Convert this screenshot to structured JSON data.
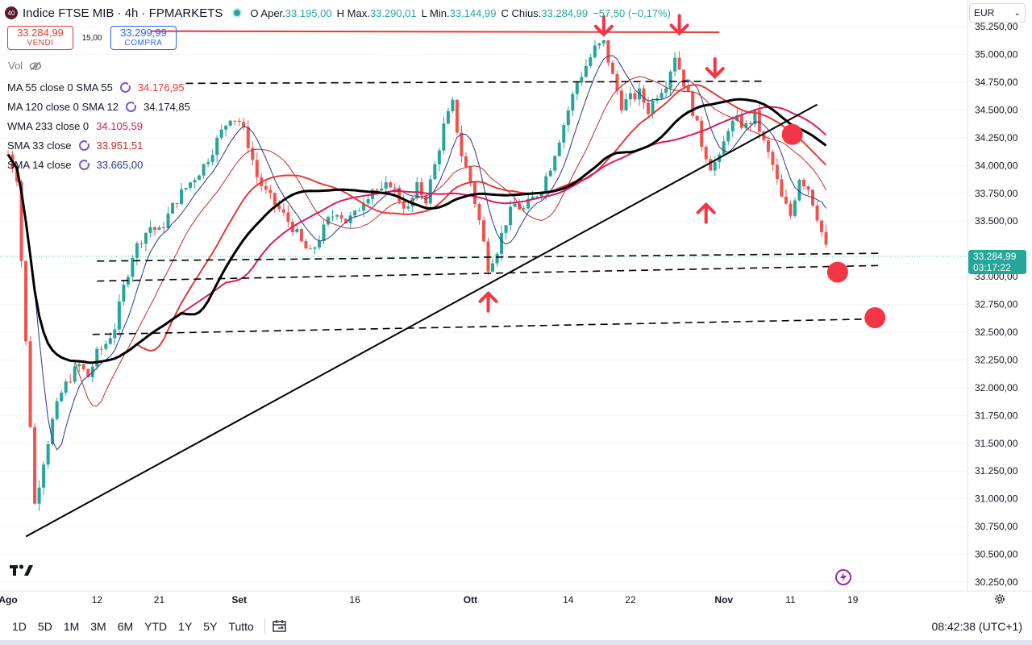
{
  "header": {
    "logo_text": "40",
    "title": "Indice FTSE MIB · 4h · FPMARKETS",
    "open_label": "O",
    "open_text": "Aper.",
    "open_value": "33.195,00",
    "high_label": "H",
    "high_text": "Max.",
    "high_value": "33.290,01",
    "low_label": "L",
    "low_text": "Min.",
    "low_value": "33.144,99",
    "close_label": "C",
    "close_text": "Chius.",
    "close_value": "33.284,99",
    "change": "−57,50 (−0,17%)"
  },
  "trade": {
    "sell_price": "33.284,99",
    "sell_label": "VENDI",
    "spread": "15,00",
    "buy_price": "33.299,99",
    "buy_label": "COMPRA"
  },
  "volume_label": "Vol",
  "indicators": [
    {
      "label": "MA 55 close 0 SMA 55",
      "value": "34.176,95",
      "color": "#e53935"
    },
    {
      "label": "MA 120 close 0 SMA 12",
      "value": "34.174,85",
      "color": "#000000"
    },
    {
      "label": "WMA 233 close 0",
      "value": "34.105,59",
      "color": "#d81b60"
    },
    {
      "label": "SMA 33 close",
      "value": "33.951,51",
      "color": "#c62828"
    },
    {
      "label": "SMA 14 close",
      "value": "33.665,00",
      "color": "#283593"
    }
  ],
  "currency": "EUR",
  "last_price_tag": {
    "price": "33.284,99",
    "countdown": "03:17:22"
  },
  "timeframes": [
    "1D",
    "5D",
    "1M",
    "3M",
    "6M",
    "YTD",
    "1Y",
    "5Y",
    "Tutto"
  ],
  "clock": "08:42:38 (UTC+1)",
  "colors": {
    "up": "#26a69a",
    "down": "#ef5350",
    "annotation": "#f23645"
  },
  "chart_data": {
    "type": "candlestick",
    "title": "Indice FTSE MIB · 4h · FPMARKETS",
    "y_ticks": [
      {
        "v": 35250,
        "label": "35.250,00"
      },
      {
        "v": 35000,
        "label": "35.000,00"
      },
      {
        "v": 34750,
        "label": "34.750,00"
      },
      {
        "v": 34500,
        "label": "34.500,00"
      },
      {
        "v": 34250,
        "label": "34.250,00"
      },
      {
        "v": 34000,
        "label": "34.000,00"
      },
      {
        "v": 33750,
        "label": "33.750,00"
      },
      {
        "v": 33500,
        "label": "33.500,00"
      },
      {
        "v": 33000,
        "label": "33.000,00"
      },
      {
        "v": 32750,
        "label": "32.750,00"
      },
      {
        "v": 32500,
        "label": "32.500,00"
      },
      {
        "v": 32250,
        "label": "32.250,00"
      },
      {
        "v": 32000,
        "label": "32.000,00"
      },
      {
        "v": 31750,
        "label": "31.750,00"
      },
      {
        "v": 31500,
        "label": "31.500,00"
      },
      {
        "v": 31250,
        "label": "31.250,00"
      },
      {
        "v": 31000,
        "label": "31.000,00"
      },
      {
        "v": 30750,
        "label": "30.750,00"
      },
      {
        "v": 30500,
        "label": "30.500,00"
      },
      {
        "v": 30250,
        "label": "30.250,00"
      }
    ],
    "ylim": [
      30170,
      35360
    ],
    "x_ticks": [
      {
        "t": 0,
        "label": "Ago"
      },
      {
        "t": 10,
        "label": "12"
      },
      {
        "t": 17,
        "label": "21"
      },
      {
        "t": 26,
        "label": "Set"
      },
      {
        "t": 39,
        "label": "16"
      },
      {
        "t": 52,
        "label": "Ott"
      },
      {
        "t": 63,
        "label": "14"
      },
      {
        "t": 70,
        "label": "22"
      },
      {
        "t": 80.5,
        "label": "Nov"
      },
      {
        "t": 88,
        "label": "11"
      },
      {
        "t": 95,
        "label": "19"
      }
    ],
    "xlim": [
      0,
      107
    ],
    "price_key_points": [
      [
        0,
        34100
      ],
      [
        1,
        33900
      ],
      [
        2,
        32400
      ],
      [
        3,
        30950
      ],
      [
        4,
        31350
      ],
      [
        5,
        31700
      ],
      [
        6,
        31950
      ],
      [
        7,
        32100
      ],
      [
        8,
        32200
      ],
      [
        9,
        32100
      ],
      [
        10,
        32300
      ],
      [
        11,
        32400
      ],
      [
        12,
        32550
      ],
      [
        13,
        32900
      ],
      [
        14,
        33200
      ],
      [
        15,
        33350
      ],
      [
        16,
        33450
      ],
      [
        17,
        33400
      ],
      [
        18,
        33550
      ],
      [
        19,
        33700
      ],
      [
        20,
        33800
      ],
      [
        21,
        33900
      ],
      [
        22,
        34000
      ],
      [
        23,
        34150
      ],
      [
        24,
        34300
      ],
      [
        25,
        34450
      ],
      [
        26,
        34400
      ],
      [
        27,
        34200
      ],
      [
        28,
        33900
      ],
      [
        29,
        33750
      ],
      [
        30,
        33650
      ],
      [
        31,
        33550
      ],
      [
        32,
        33450
      ],
      [
        33,
        33300
      ],
      [
        34,
        33200
      ],
      [
        35,
        33350
      ],
      [
        36,
        33500
      ],
      [
        37,
        33600
      ],
      [
        38,
        33500
      ],
      [
        39,
        33550
      ],
      [
        40,
        33700
      ],
      [
        41,
        33800
      ],
      [
        42,
        33750
      ],
      [
        43,
        33850
      ],
      [
        44,
        33700
      ],
      [
        45,
        33600
      ],
      [
        46,
        33800
      ],
      [
        47,
        33700
      ],
      [
        48,
        34000
      ],
      [
        49,
        34350
      ],
      [
        50,
        34550
      ],
      [
        51,
        34100
      ],
      [
        52,
        33850
      ],
      [
        53,
        33500
      ],
      [
        54,
        33100
      ],
      [
        55,
        33250
      ],
      [
        56,
        33500
      ],
      [
        57,
        33650
      ],
      [
        58,
        33600
      ],
      [
        59,
        33700
      ],
      [
        60,
        33800
      ],
      [
        61,
        34000
      ],
      [
        62,
        34250
      ],
      [
        63,
        34500
      ],
      [
        64,
        34750
      ],
      [
        65,
        34900
      ],
      [
        66,
        35050
      ],
      [
        67,
        35100
      ],
      [
        68,
        34800
      ],
      [
        69,
        34550
      ],
      [
        70,
        34600
      ],
      [
        71,
        34650
      ],
      [
        72,
        34500
      ],
      [
        73,
        34650
      ],
      [
        74,
        34750
      ],
      [
        75,
        35000
      ],
      [
        76,
        34750
      ],
      [
        77,
        34500
      ],
      [
        78,
        34200
      ],
      [
        79,
        34000
      ],
      [
        80,
        34050
      ],
      [
        81,
        34350
      ],
      [
        82,
        34400
      ],
      [
        83,
        34350
      ],
      [
        84,
        34450
      ],
      [
        85,
        34200
      ],
      [
        86,
        34000
      ],
      [
        87,
        33700
      ],
      [
        88,
        33550
      ],
      [
        89,
        33900
      ],
      [
        90,
        33800
      ],
      [
        91,
        33550
      ],
      [
        92,
        33250
      ]
    ],
    "trendline": [
      [
        2,
        30660
      ],
      [
        91,
        34550
      ]
    ],
    "horizontal_lines": [
      {
        "from": [
          10,
          33140
        ],
        "to": [
          98,
          33210
        ],
        "style": "dashed"
      },
      {
        "from": [
          10,
          32960
        ],
        "to": [
          98,
          33100
        ],
        "style": "dashed"
      },
      {
        "from": [
          9.5,
          32480
        ],
        "to": [
          98,
          32620
        ],
        "style": "dashed"
      },
      {
        "from": [
          20,
          34740
        ],
        "to": [
          85,
          34760
        ],
        "style": "dashed"
      },
      {
        "from": [
          16,
          35210
        ],
        "to": [
          80,
          35200
        ],
        "style": "solid-red"
      }
    ],
    "markers": {
      "down_arrows": [
        [
          67,
          35180
        ],
        [
          75.5,
          35190
        ],
        [
          79.5,
          34800
        ]
      ],
      "up_arrows": [
        [
          54,
          32850
        ],
        [
          78.5,
          33650
        ]
      ],
      "circles": [
        [
          88.2,
          34280
        ],
        [
          93.3,
          33040
        ],
        [
          97.5,
          32630
        ]
      ]
    }
  }
}
